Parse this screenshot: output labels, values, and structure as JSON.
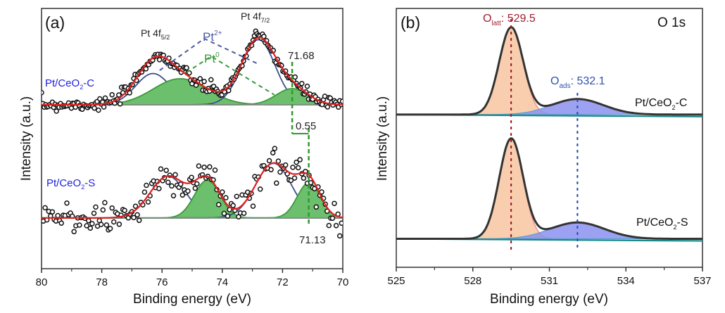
{
  "chart_data": [
    {
      "type": "line",
      "panel_label": "(a)",
      "xlabel": "Binding energy (eV)",
      "ylabel": "Intensity (a.u.)",
      "xlim": [
        80,
        70
      ],
      "xticks": [
        "80",
        "78",
        "76",
        "74",
        "72",
        "70"
      ],
      "x_reversed": true,
      "ylim": [
        0,
        10
      ],
      "y_ticks_shown": false,
      "grid": false,
      "annotations": {
        "pt4f52": "Pt 4f",
        "pt4f52_sub": "5/2",
        "pt4f72": "Pt 4f",
        "pt4f72_sub": "7/2",
        "pt2": "Pt",
        "pt2_sup": "2+",
        "pt0": "Pt",
        "pt0_sup": "0",
        "peak_c": "71.68",
        "shift": "0.55",
        "peak_s": "71.13"
      },
      "marker_lines": [
        {
          "x": 71.68,
          "color": "#2e9a2e"
        },
        {
          "x": 71.13,
          "color": "#2e9a2e"
        }
      ],
      "pt2_guide": [
        [
          76.08,
          7.62
        ],
        [
          74.6,
          8.84
        ],
        [
          72.85,
          7.89
        ]
      ],
      "pt0_guide": [
        [
          75.19,
          7.54
        ],
        [
          74.37,
          8.16
        ],
        [
          72.27,
          6.68
        ]
      ],
      "series": [
        {
          "name": "Pt/CeO",
          "name_sub": "2",
          "name_suffix": "-C",
          "offset": 6.3,
          "noise": 0.12,
          "components": [
            {
              "species": "Pt2+",
              "center": 76.3,
              "height": 1.2,
              "fwhm": 1.35,
              "color": "#3b4f8c",
              "filled": false
            },
            {
              "species": "Pt0",
              "center": 75.4,
              "height": 1.0,
              "fwhm": 2.1,
              "color": "#3c9a3c",
              "filled": true
            },
            {
              "species": "Pt2+",
              "center": 72.8,
              "height": 2.5,
              "fwhm": 1.3,
              "color": "#3b4f8c",
              "filled": false
            },
            {
              "species": "Pt0",
              "center": 71.68,
              "height": 0.62,
              "fwhm": 1.25,
              "color": "#3c9a3c",
              "filled": true
            }
          ]
        },
        {
          "name": "Pt/CeO",
          "name_sub": "2",
          "name_suffix": "-S",
          "offset": 1.95,
          "noise": 0.32,
          "components": [
            {
              "species": "Pt2+",
              "center": 75.8,
              "height": 1.6,
              "fwhm": 1.4,
              "color": "#3b4f8c",
              "filled": false
            },
            {
              "species": "Pt0",
              "center": 74.5,
              "height": 1.45,
              "fwhm": 1.0,
              "color": "#3c9a3c",
              "filled": true
            },
            {
              "species": "Pt2+",
              "center": 72.3,
              "height": 2.1,
              "fwhm": 1.4,
              "color": "#3b4f8c",
              "filled": false
            },
            {
              "species": "Pt0",
              "center": 71.13,
              "height": 1.35,
              "fwhm": 0.9,
              "color": "#3c9a3c",
              "filled": true
            }
          ]
        }
      ],
      "fit_color": "#e02020",
      "label_color": "#2222dd"
    },
    {
      "type": "area",
      "panel_label": "(b)",
      "title": "O 1s",
      "xlabel": "Binding energy (eV)",
      "ylabel": "Intensity (a.u.)",
      "xlim": [
        525,
        537
      ],
      "xticks": [
        "525",
        "528",
        "531",
        "534",
        "537"
      ],
      "ylim": [
        0,
        10
      ],
      "y_ticks_shown": false,
      "grid": false,
      "annotations": {
        "olatt": "O",
        "olatt_sub": "latt",
        "olatt_value": ": 529.5",
        "oads": "O",
        "oads_sub": "ads",
        "oads_value": ": 532.1"
      },
      "marker_lines": [
        {
          "x": 529.5,
          "color": "#a01828"
        },
        {
          "x": 532.1,
          "color": "#2a4fb0"
        }
      ],
      "series": [
        {
          "name": "Pt/CeO",
          "name_sub": "2",
          "name_suffix": "-C",
          "offset": 5.9,
          "components": [
            {
              "species": "O_latt",
              "center": 529.5,
              "height": 3.35,
              "fwhm": 1.1,
              "color": "#f7c6a0"
            },
            {
              "species": "O_ads",
              "center": 532.1,
              "height": 0.6,
              "fwhm": 2.4,
              "color": "#8c90ee"
            }
          ]
        },
        {
          "name": "Pt/CeO",
          "name_sub": "2",
          "name_suffix": "-S",
          "offset": 1.1,
          "components": [
            {
              "species": "O_latt",
              "center": 529.5,
              "height": 3.85,
              "fwhm": 1.1,
              "color": "#f7c6a0"
            },
            {
              "species": "O_ads",
              "center": 532.1,
              "height": 0.63,
              "fwhm": 2.5,
              "color": "#8c90ee"
            }
          ]
        }
      ],
      "envelope_color": "#333333",
      "baseline_color": "#1a8a8a"
    }
  ]
}
